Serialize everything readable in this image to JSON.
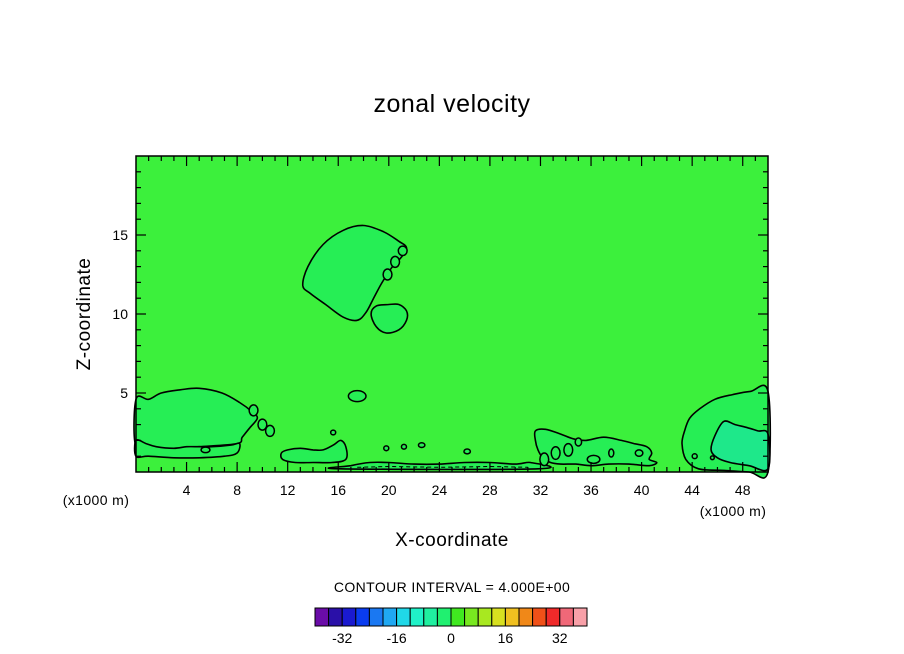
{
  "chart_data": {
    "type": "contour",
    "title": "zonal velocity",
    "xlabel": "X-coordinate",
    "ylabel": "Z-coordinate",
    "x_unit": "(x1000 m)",
    "y_unit": "(x1000 m)",
    "xlim": [
      0,
      50
    ],
    "ylim": [
      0,
      20
    ],
    "x_ticks": [
      4,
      8,
      12,
      16,
      20,
      24,
      28,
      32,
      36,
      40,
      44,
      48
    ],
    "y_ticks": [
      5,
      10,
      15
    ],
    "x_minor_step": 1,
    "y_minor_step": 1,
    "contour_interval_label": "CONTOUR INTERVAL = 4.000E+00",
    "contour_interval": 4.0,
    "background_level": 0,
    "colorbar": {
      "levels": [
        -36,
        -32,
        -28,
        -24,
        -20,
        -16,
        -12,
        -8,
        -4,
        0,
        4,
        8,
        12,
        16,
        20,
        24,
        28,
        32,
        36
      ],
      "tick_labels": [
        "-32",
        "-16",
        "0",
        "16",
        "32"
      ],
      "tick_values": [
        -32,
        -16,
        0,
        16,
        32
      ],
      "colors": [
        "#6a0ca8",
        "#2a10a8",
        "#1a1ad0",
        "#0a3cf0",
        "#1a78f2",
        "#20a8f2",
        "#20d8e8",
        "#20f2c8",
        "#20f0a0",
        "#20f070",
        "#40e820",
        "#78e820",
        "#a8e820",
        "#d8e020",
        "#f0c020",
        "#f08818",
        "#f05018",
        "#f02a2a",
        "#f06878",
        "#f8a0a8"
      ]
    },
    "field_color": "#3cf03c",
    "region_colors": {
      "positive_4": "#26ee55",
      "positive_8": "#1ee88a",
      "negative_4": "#5af01e"
    },
    "regions": [
      {
        "name": "upper-blob",
        "level": 4,
        "points": [
          [
            13.2,
            11.8
          ],
          [
            13.6,
            13.0
          ],
          [
            14.8,
            14.4
          ],
          [
            16.4,
            15.3
          ],
          [
            18.0,
            15.6
          ],
          [
            19.6,
            15.2
          ],
          [
            20.8,
            14.6
          ],
          [
            21.4,
            14.2
          ],
          [
            21.0,
            13.6
          ],
          [
            20.2,
            12.9
          ],
          [
            19.4,
            11.9
          ],
          [
            18.8,
            11.0
          ],
          [
            18.2,
            10.1
          ],
          [
            17.5,
            9.6
          ],
          [
            16.4,
            9.8
          ],
          [
            15.0,
            10.6
          ],
          [
            13.8,
            11.3
          ]
        ]
      },
      {
        "name": "small-blob-mid",
        "level": 4,
        "points": [
          [
            18.6,
            10.0
          ],
          [
            19.0,
            10.5
          ],
          [
            20.0,
            10.6
          ],
          [
            20.8,
            10.6
          ],
          [
            21.4,
            10.2
          ],
          [
            21.4,
            9.6
          ],
          [
            20.8,
            9.0
          ],
          [
            19.8,
            8.8
          ],
          [
            19.0,
            9.2
          ]
        ]
      },
      {
        "name": "left-dome",
        "level": 4,
        "points": [
          [
            0,
            4.6
          ],
          [
            1.0,
            4.6
          ],
          [
            2.0,
            5.0
          ],
          [
            3.5,
            5.2
          ],
          [
            5.0,
            5.3
          ],
          [
            6.8,
            5.0
          ],
          [
            8.2,
            4.4
          ],
          [
            9.2,
            3.8
          ],
          [
            9.6,
            3.4
          ],
          [
            9.0,
            2.8
          ],
          [
            8.4,
            2.2
          ],
          [
            8.0,
            1.8
          ],
          [
            5.0,
            1.6
          ],
          [
            3.0,
            1.5
          ],
          [
            1.5,
            1.5
          ],
          [
            0,
            1.6
          ]
        ]
      },
      {
        "name": "left-lower-band",
        "level": 4,
        "points": [
          [
            0,
            2.0
          ],
          [
            0.8,
            1.8
          ],
          [
            1.6,
            1.6
          ],
          [
            3.0,
            1.5
          ],
          [
            4.0,
            1.6
          ],
          [
            5.0,
            1.6
          ],
          [
            6.0,
            1.6
          ],
          [
            7.5,
            1.7
          ],
          [
            8.2,
            1.8
          ],
          [
            8.0,
            1.2
          ],
          [
            7.0,
            1.0
          ],
          [
            5.0,
            0.9
          ],
          [
            3.0,
            0.9
          ],
          [
            1.0,
            1.0
          ],
          [
            0,
            1.0
          ]
        ]
      },
      {
        "name": "mid-strip-a",
        "level": 4,
        "points": [
          [
            11.5,
            1.2
          ],
          [
            12.0,
            1.4
          ],
          [
            13.0,
            1.5
          ],
          [
            14.0,
            1.4
          ],
          [
            14.8,
            1.4
          ],
          [
            15.6,
            1.7
          ],
          [
            16.2,
            2.0
          ],
          [
            16.6,
            1.6
          ],
          [
            16.6,
            0.8
          ],
          [
            15.5,
            0.6
          ],
          [
            14.0,
            0.6
          ],
          [
            12.6,
            0.6
          ],
          [
            11.6,
            0.8
          ]
        ]
      },
      {
        "name": "mid-strip-b",
        "level": 4,
        "points": [
          [
            16.2,
            0.2
          ],
          [
            17.0,
            0.4
          ],
          [
            18.5,
            0.6
          ],
          [
            20.0,
            0.6
          ],
          [
            22.0,
            0.5
          ],
          [
            24.0,
            0.5
          ],
          [
            26.0,
            0.6
          ],
          [
            28.0,
            0.6
          ],
          [
            30.0,
            0.5
          ],
          [
            31.2,
            0.6
          ],
          [
            31.8,
            0.2
          ]
        ]
      },
      {
        "name": "right-cluster",
        "level": 4,
        "points": [
          [
            31.6,
            2.6
          ],
          [
            32.4,
            2.7
          ],
          [
            33.6,
            2.4
          ],
          [
            34.6,
            2.1
          ],
          [
            35.6,
            2.0
          ],
          [
            37.0,
            2.2
          ],
          [
            38.4,
            2.0
          ],
          [
            39.4,
            1.8
          ],
          [
            40.4,
            1.6
          ],
          [
            40.8,
            1.2
          ],
          [
            40.6,
            0.8
          ],
          [
            41.2,
            0.6
          ],
          [
            40.6,
            0.4
          ],
          [
            39.0,
            0.5
          ],
          [
            37.4,
            0.5
          ],
          [
            36.0,
            0.4
          ],
          [
            34.8,
            0.5
          ],
          [
            33.6,
            0.5
          ],
          [
            32.8,
            0.6
          ],
          [
            32.2,
            0.9
          ],
          [
            31.8,
            1.4
          ],
          [
            31.6,
            2.0
          ]
        ]
      },
      {
        "name": "right-dome",
        "level": 4,
        "points": [
          [
            43.4,
            2.6
          ],
          [
            43.8,
            3.4
          ],
          [
            44.6,
            4.0
          ],
          [
            45.8,
            4.6
          ],
          [
            47.2,
            4.9
          ],
          [
            48.6,
            5.1
          ],
          [
            50,
            5.1
          ],
          [
            50,
            0
          ],
          [
            48.5,
            0
          ],
          [
            46.5,
            0.1
          ],
          [
            44.5,
            0.2
          ],
          [
            43.5,
            0.8
          ],
          [
            43.2,
            1.8
          ]
        ]
      },
      {
        "name": "right-dome-inner",
        "level": 8,
        "points": [
          [
            46.5,
            3.2
          ],
          [
            47.4,
            3.0
          ],
          [
            48.4,
            2.8
          ],
          [
            49.2,
            2.6
          ],
          [
            50,
            2.4
          ],
          [
            50,
            0.2
          ],
          [
            48.5,
            0.4
          ],
          [
            47.0,
            0.6
          ],
          [
            46.0,
            0.9
          ],
          [
            45.5,
            1.4
          ],
          [
            45.8,
            2.3
          ]
        ]
      }
    ],
    "small_contours": [
      {
        "x": 19.9,
        "z": 12.5,
        "rx": 0.35,
        "rz": 0.35
      },
      {
        "x": 20.5,
        "z": 13.3,
        "rx": 0.35,
        "rz": 0.35
      },
      {
        "x": 21.1,
        "z": 14.0,
        "rx": 0.35,
        "rz": 0.3
      },
      {
        "x": 17.5,
        "z": 4.8,
        "rx": 0.7,
        "rz": 0.35
      },
      {
        "x": 9.3,
        "z": 3.9,
        "rx": 0.35,
        "rz": 0.35
      },
      {
        "x": 10.0,
        "z": 3.0,
        "rx": 0.35,
        "rz": 0.35
      },
      {
        "x": 10.6,
        "z": 2.6,
        "rx": 0.35,
        "rz": 0.35
      },
      {
        "x": 5.5,
        "z": 1.4,
        "rx": 0.35,
        "rz": 0.18
      },
      {
        "x": 15.6,
        "z": 2.5,
        "rx": 0.2,
        "rz": 0.15
      },
      {
        "x": 19.8,
        "z": 1.5,
        "rx": 0.2,
        "rz": 0.15
      },
      {
        "x": 21.2,
        "z": 1.6,
        "rx": 0.2,
        "rz": 0.15
      },
      {
        "x": 22.6,
        "z": 1.7,
        "rx": 0.25,
        "rz": 0.15
      },
      {
        "x": 26.2,
        "z": 1.3,
        "rx": 0.25,
        "rz": 0.15
      },
      {
        "x": 32.3,
        "z": 0.8,
        "rx": 0.35,
        "rz": 0.4
      },
      {
        "x": 33.2,
        "z": 1.2,
        "rx": 0.35,
        "rz": 0.4
      },
      {
        "x": 34.2,
        "z": 1.4,
        "rx": 0.35,
        "rz": 0.4
      },
      {
        "x": 35.0,
        "z": 1.9,
        "rx": 0.25,
        "rz": 0.25
      },
      {
        "x": 36.2,
        "z": 0.8,
        "rx": 0.5,
        "rz": 0.25
      },
      {
        "x": 37.6,
        "z": 1.2,
        "rx": 0.2,
        "rz": 0.25
      },
      {
        "x": 39.8,
        "z": 1.2,
        "rx": 0.3,
        "rz": 0.2
      },
      {
        "x": 44.2,
        "z": 1.0,
        "rx": 0.2,
        "rz": 0.15
      },
      {
        "x": 45.6,
        "z": 0.9,
        "rx": 0.15,
        "rz": 0.12
      }
    ],
    "dashed_contours": [
      {
        "name": "near-surface-negative",
        "points": [
          [
            17.5,
            0.3
          ],
          [
            20,
            0.35
          ],
          [
            24,
            0.3
          ],
          [
            28,
            0.35
          ],
          [
            31,
            0.3
          ]
        ]
      }
    ]
  }
}
